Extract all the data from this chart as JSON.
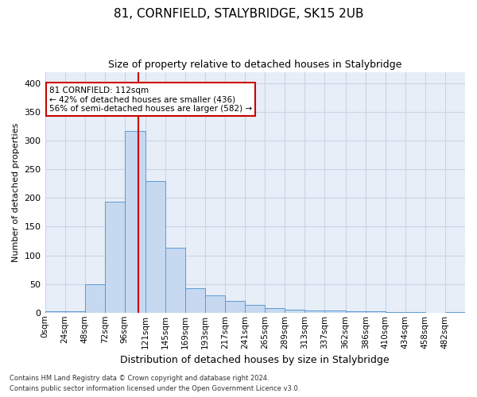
{
  "title": "81, CORNFIELD, STALYBRIDGE, SK15 2UB",
  "subtitle": "Size of property relative to detached houses in Stalybridge",
  "xlabel": "Distribution of detached houses by size in Stalybridge",
  "ylabel": "Number of detached properties",
  "bin_labels": [
    "0sqm",
    "24sqm",
    "48sqm",
    "72sqm",
    "96sqm",
    "121sqm",
    "145sqm",
    "169sqm",
    "193sqm",
    "217sqm",
    "241sqm",
    "265sqm",
    "289sqm",
    "313sqm",
    "337sqm",
    "362sqm",
    "386sqm",
    "410sqm",
    "434sqm",
    "458sqm",
    "482sqm"
  ],
  "bin_edges": [
    0,
    24,
    48,
    72,
    96,
    121,
    145,
    169,
    193,
    217,
    241,
    265,
    289,
    313,
    337,
    362,
    386,
    410,
    434,
    458,
    482,
    506
  ],
  "bar_heights": [
    2,
    2,
    50,
    193,
    317,
    230,
    113,
    43,
    30,
    20,
    14,
    8,
    5,
    4,
    4,
    3,
    2,
    1,
    1,
    0,
    1
  ],
  "bar_color": "#c6d9f0",
  "bar_edge_color": "#5b9bd5",
  "grid_color": "#c8d4e8",
  "bg_color": "#e8eef7",
  "property_sqm": 112,
  "vline_color": "#cc0000",
  "annotation_text": "81 CORNFIELD: 112sqm\n← 42% of detached houses are smaller (436)\n56% of semi-detached houses are larger (582) →",
  "annotation_box_color": "#ffffff",
  "annotation_box_edge": "#cc0000",
  "ylim": [
    0,
    420
  ],
  "yticks": [
    0,
    50,
    100,
    150,
    200,
    250,
    300,
    350,
    400
  ],
  "footer_line1": "Contains HM Land Registry data © Crown copyright and database right 2024.",
  "footer_line2": "Contains public sector information licensed under the Open Government Licence v3.0."
}
